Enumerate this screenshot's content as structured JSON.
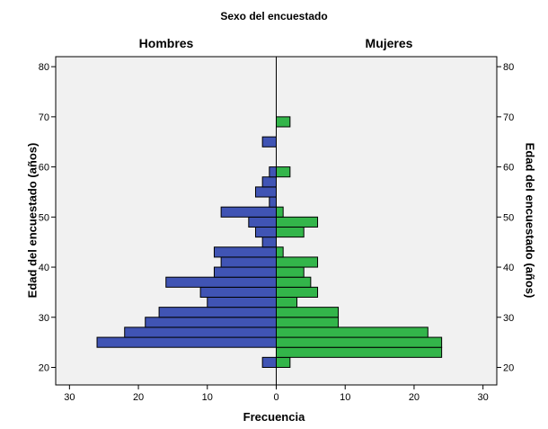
{
  "chart_data": {
    "type": "bar",
    "orientation": "horizontal",
    "title": "Sexo del encuestado",
    "panels": [
      "Hombres",
      "Mujeres"
    ],
    "xlabel": "Frecuencia",
    "ylabel": "Edad del encuestado (años)",
    "xlim": [
      -32,
      32
    ],
    "ylim": [
      16.5,
      82
    ],
    "x_ticks": [
      30,
      20,
      10,
      0,
      10,
      20,
      30
    ],
    "x_tick_values": [
      -30,
      -20,
      -10,
      0,
      10,
      20,
      30
    ],
    "y_ticks": [
      20,
      30,
      40,
      50,
      60,
      70,
      80
    ],
    "grid": false,
    "bin_width": 2,
    "series": [
      {
        "name": "Hombres",
        "color": "#4054b4",
        "bins": [
          {
            "start": 20,
            "value": 2
          },
          {
            "start": 24,
            "value": 26
          },
          {
            "start": 26,
            "value": 22
          },
          {
            "start": 28,
            "value": 19
          },
          {
            "start": 30,
            "value": 17
          },
          {
            "start": 32,
            "value": 10
          },
          {
            "start": 34,
            "value": 11
          },
          {
            "start": 36,
            "value": 16
          },
          {
            "start": 38,
            "value": 9
          },
          {
            "start": 40,
            "value": 8
          },
          {
            "start": 42,
            "value": 9
          },
          {
            "start": 44,
            "value": 2
          },
          {
            "start": 46,
            "value": 3
          },
          {
            "start": 48,
            "value": 4
          },
          {
            "start": 50,
            "value": 8
          },
          {
            "start": 52,
            "value": 1
          },
          {
            "start": 54,
            "value": 3
          },
          {
            "start": 56,
            "value": 2
          },
          {
            "start": 58,
            "value": 1
          },
          {
            "start": 64,
            "value": 2
          }
        ]
      },
      {
        "name": "Mujeres",
        "color": "#33b54a",
        "bins": [
          {
            "start": 20,
            "value": 2
          },
          {
            "start": 22,
            "value": 24
          },
          {
            "start": 24,
            "value": 24
          },
          {
            "start": 26,
            "value": 22
          },
          {
            "start": 28,
            "value": 9
          },
          {
            "start": 30,
            "value": 9
          },
          {
            "start": 32,
            "value": 3
          },
          {
            "start": 34,
            "value": 6
          },
          {
            "start": 36,
            "value": 5
          },
          {
            "start": 38,
            "value": 4
          },
          {
            "start": 40,
            "value": 6
          },
          {
            "start": 42,
            "value": 1
          },
          {
            "start": 46,
            "value": 4
          },
          {
            "start": 48,
            "value": 6
          },
          {
            "start": 50,
            "value": 1
          },
          {
            "start": 58,
            "value": 2
          },
          {
            "start": 68,
            "value": 2
          }
        ]
      }
    ],
    "colors": {
      "plot_background": "#f1f1f1",
      "bar_edge": "#000000",
      "axis": "#000000"
    }
  }
}
